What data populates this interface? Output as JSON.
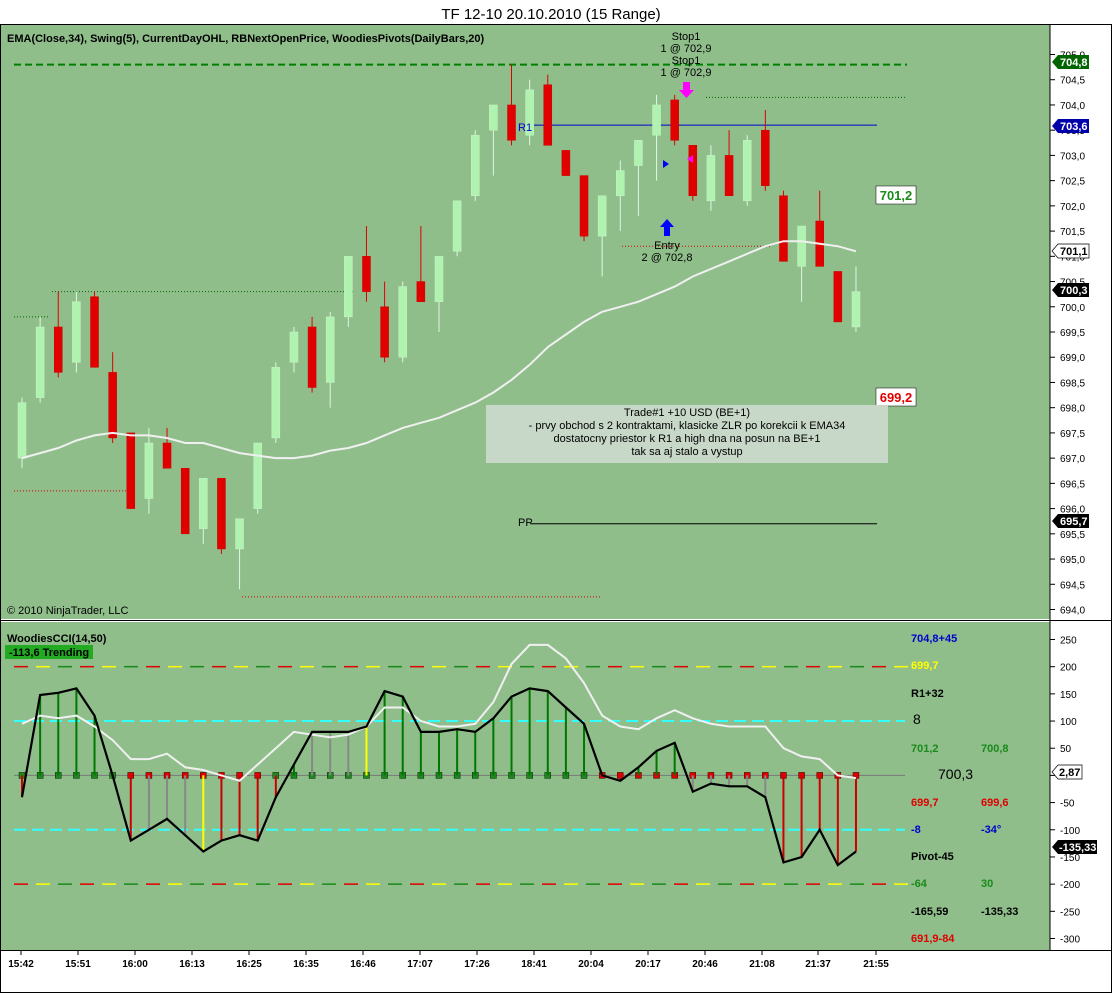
{
  "window": {
    "title": "TF 12-10  20.10.2010 (15 Range)"
  },
  "price_panel": {
    "indicators_label": "EMA(Close,34), Swing(5), CurrentDayOHL, RBNextOpenPrice, WoodiesPivots(DailyBars,20)",
    "copyright": "© 2010 NinjaTrader, LLC",
    "levels": {
      "r1_label": "R1",
      "pp_label": "PP",
      "r1_value": 703.6,
      "pp_value": 695.7,
      "high_value": 704.8
    },
    "markers": {
      "stop_label": "Stop1",
      "stop_value": "1 @ 702,9",
      "entry_label": "Entry",
      "entry_value": "2 @ 702,8"
    },
    "next_bar_up": "701,2",
    "next_bar_down": "699,2",
    "note": {
      "line1": "Trade#1 +10 USD (BE+1)",
      "line2": "- prvy obchod s 2 kontraktami, klasicke ZLR po korekcii k EMA34",
      "line3": "dostatocny priestor k R1 a high dna na posun na BE+1",
      "line4": "tak sa aj stalo a vystup"
    },
    "badges": {
      "high": "704,8",
      "r1": "703,6",
      "ema": "701,1",
      "last": "700,3",
      "pp": "695,7"
    },
    "colors": {
      "background": "#8fbe8b",
      "up": "#b0f2b0",
      "down": "#e00000",
      "ema": "#f0f0f0"
    }
  },
  "cci_panel": {
    "title": "WoodiesCCI(14,50)",
    "trend_badge": "-113,6 Trending",
    "right_badges": {
      "cci": "2,87",
      "turbo": "-135,33"
    },
    "pivot_labels": {
      "r2": "704,8+45",
      "r1_value": "699,7",
      "r1": "R1+32",
      "count": "8",
      "pp_left": "701,2",
      "pp_right": "700,8",
      "mid": "700,3",
      "s1_left": "699,7",
      "s1_right": "699,6",
      "s2_left": "-8",
      "s2_right": "-34°",
      "pivot": "Pivot-45",
      "s3_left": "-64",
      "s3_right": "30",
      "s4_left": "-165,59",
      "s4_right": "-135,33",
      "s5": "691,9-84"
    }
  },
  "time_axis": {
    "labels": [
      "15:42",
      "15:51",
      "16:00",
      "16:13",
      "16:25",
      "16:35",
      "16:46",
      "17:07",
      "17:26",
      "18:41",
      "20:04",
      "20:17",
      "20:46",
      "21:08",
      "21:37",
      "21:55"
    ]
  },
  "chart_data": [
    {
      "type": "candlestick",
      "title": "TF 12-10  20.10.2010 (15 Range)",
      "ylim": [
        693.9,
        705.3
      ],
      "y_ticks": [
        "705,0",
        "704,5",
        "704,0",
        "703,5",
        "703,0",
        "702,5",
        "702,0",
        "701,5",
        "701,0",
        "700,5",
        "700,0",
        "699,5",
        "699,0",
        "698,5",
        "698,0",
        "697,5",
        "697,0",
        "696,5",
        "696,0",
        "695,5",
        "695,0",
        "694,5",
        "694,0"
      ],
      "candles": [
        {
          "o": 697.0,
          "h": 698.2,
          "l": 696.8,
          "c": 698.1
        },
        {
          "o": 698.2,
          "h": 699.8,
          "l": 698.1,
          "c": 699.6
        },
        {
          "o": 699.6,
          "h": 700.3,
          "l": 698.6,
          "c": 698.7
        },
        {
          "o": 698.9,
          "h": 700.3,
          "l": 698.7,
          "c": 700.1
        },
        {
          "o": 700.2,
          "h": 700.3,
          "l": 698.8,
          "c": 698.8
        },
        {
          "o": 698.7,
          "h": 699.1,
          "l": 697.3,
          "c": 697.4
        },
        {
          "o": 697.5,
          "h": 697.5,
          "l": 696.0,
          "c": 696.0
        },
        {
          "o": 696.2,
          "h": 697.6,
          "l": 695.9,
          "c": 697.3
        },
        {
          "o": 697.3,
          "h": 697.6,
          "l": 696.8,
          "c": 696.8
        },
        {
          "o": 696.8,
          "h": 696.8,
          "l": 695.5,
          "c": 695.5
        },
        {
          "o": 695.6,
          "h": 696.6,
          "l": 695.3,
          "c": 696.6
        },
        {
          "o": 696.6,
          "h": 696.6,
          "l": 695.1,
          "c": 695.2
        },
        {
          "o": 695.2,
          "h": 695.8,
          "l": 694.4,
          "c": 695.8
        },
        {
          "o": 696.0,
          "h": 697.3,
          "l": 695.9,
          "c": 697.3
        },
        {
          "o": 697.4,
          "h": 698.9,
          "l": 697.3,
          "c": 698.8
        },
        {
          "o": 698.9,
          "h": 699.6,
          "l": 698.7,
          "c": 699.5
        },
        {
          "o": 699.6,
          "h": 699.8,
          "l": 698.3,
          "c": 698.4
        },
        {
          "o": 698.5,
          "h": 699.9,
          "l": 698.0,
          "c": 699.8
        },
        {
          "o": 699.8,
          "h": 700.9,
          "l": 699.6,
          "c": 701.0
        },
        {
          "o": 701.0,
          "h": 701.6,
          "l": 700.1,
          "c": 700.3
        },
        {
          "o": 700.0,
          "h": 700.5,
          "l": 698.9,
          "c": 699.0
        },
        {
          "o": 699.0,
          "h": 700.5,
          "l": 698.9,
          "c": 700.4
        },
        {
          "o": 700.5,
          "h": 701.6,
          "l": 700.1,
          "c": 700.1
        },
        {
          "o": 700.1,
          "h": 701.0,
          "l": 699.5,
          "c": 701.0
        },
        {
          "o": 701.1,
          "h": 702.1,
          "l": 701.0,
          "c": 702.1
        },
        {
          "o": 702.2,
          "h": 703.5,
          "l": 702.1,
          "c": 703.4
        },
        {
          "o": 703.5,
          "h": 704.0,
          "l": 702.6,
          "c": 704.0
        },
        {
          "o": 704.0,
          "h": 704.8,
          "l": 703.2,
          "c": 703.3
        },
        {
          "o": 703.4,
          "h": 704.5,
          "l": 703.2,
          "c": 704.3
        },
        {
          "o": 704.4,
          "h": 704.6,
          "l": 703.2,
          "c": 703.2
        },
        {
          "o": 703.1,
          "h": 703.1,
          "l": 702.6,
          "c": 702.6
        },
        {
          "o": 702.6,
          "h": 702.6,
          "l": 701.3,
          "c": 701.4
        },
        {
          "o": 701.4,
          "h": 702.2,
          "l": 700.6,
          "c": 702.2
        },
        {
          "o": 702.2,
          "h": 702.9,
          "l": 701.5,
          "c": 702.7
        },
        {
          "o": 702.8,
          "h": 703.3,
          "l": 701.8,
          "c": 703.3
        },
        {
          "o": 703.4,
          "h": 704.2,
          "l": 702.5,
          "c": 704.0
        },
        {
          "o": 704.1,
          "h": 704.2,
          "l": 703.2,
          "c": 703.3
        },
        {
          "o": 703.2,
          "h": 703.2,
          "l": 702.1,
          "c": 702.2
        },
        {
          "o": 702.1,
          "h": 703.2,
          "l": 701.9,
          "c": 703.0
        },
        {
          "o": 703.0,
          "h": 703.5,
          "l": 702.2,
          "c": 702.2
        },
        {
          "o": 702.1,
          "h": 703.4,
          "l": 702.0,
          "c": 703.3
        },
        {
          "o": 703.5,
          "h": 703.9,
          "l": 702.3,
          "c": 702.4
        },
        {
          "o": 702.2,
          "h": 702.3,
          "l": 700.9,
          "c": 700.9
        },
        {
          "o": 700.8,
          "h": 701.6,
          "l": 700.1,
          "c": 701.6
        },
        {
          "o": 701.7,
          "h": 702.3,
          "l": 700.8,
          "c": 700.8
        },
        {
          "o": 700.7,
          "h": 700.7,
          "l": 699.7,
          "c": 699.7
        },
        {
          "o": 699.6,
          "h": 700.8,
          "l": 699.5,
          "c": 700.3
        }
      ],
      "ema34": [
        697.0,
        697.1,
        697.2,
        697.35,
        697.45,
        697.5,
        697.45,
        697.45,
        697.4,
        697.3,
        697.3,
        697.2,
        697.1,
        697.05,
        697.0,
        697.0,
        697.05,
        697.15,
        697.2,
        697.3,
        697.45,
        697.6,
        697.7,
        697.8,
        697.95,
        698.1,
        698.3,
        698.55,
        698.85,
        699.2,
        699.45,
        699.7,
        699.9,
        700.0,
        700.1,
        700.25,
        700.4,
        700.6,
        700.75,
        700.9,
        701.05,
        701.2,
        701.3,
        701.3,
        701.25,
        701.2,
        701.1
      ],
      "levels": [
        {
          "name": "High",
          "value": 704.8
        },
        {
          "name": "R1",
          "value": 703.6
        },
        {
          "name": "PP",
          "value": 695.7
        }
      ]
    },
    {
      "type": "bar",
      "title": "WoodiesCCI(14,50)",
      "ylim": [
        -310,
        260
      ],
      "y_ticks": [
        "250",
        "200",
        "150",
        "100",
        "50",
        "0",
        "-50",
        "-100",
        "-150",
        "-200",
        "-250",
        "-300"
      ],
      "cci": [
        -40,
        148,
        152,
        160,
        110,
        0,
        -120,
        -100,
        -80,
        -110,
        -140,
        -120,
        -110,
        -120,
        -40,
        20,
        80,
        80,
        80,
        90,
        155,
        145,
        80,
        80,
        85,
        80,
        105,
        145,
        160,
        155,
        125,
        95,
        0,
        -10,
        15,
        45,
        60,
        -30,
        -15,
        -20,
        -20,
        -40,
        -160,
        -150,
        -100,
        -165,
        -140
      ],
      "turbo": [
        95,
        110,
        105,
        110,
        90,
        65,
        30,
        30,
        40,
        15,
        10,
        0,
        -10,
        20,
        50,
        80,
        75,
        70,
        75,
        90,
        125,
        125,
        100,
        90,
        90,
        95,
        135,
        205,
        240,
        240,
        215,
        170,
        110,
        90,
        85,
        105,
        120,
        105,
        95,
        90,
        90,
        90,
        50,
        35,
        30,
        0,
        -5
      ],
      "levels": [
        200,
        100,
        0,
        -100,
        -200
      ]
    }
  ]
}
